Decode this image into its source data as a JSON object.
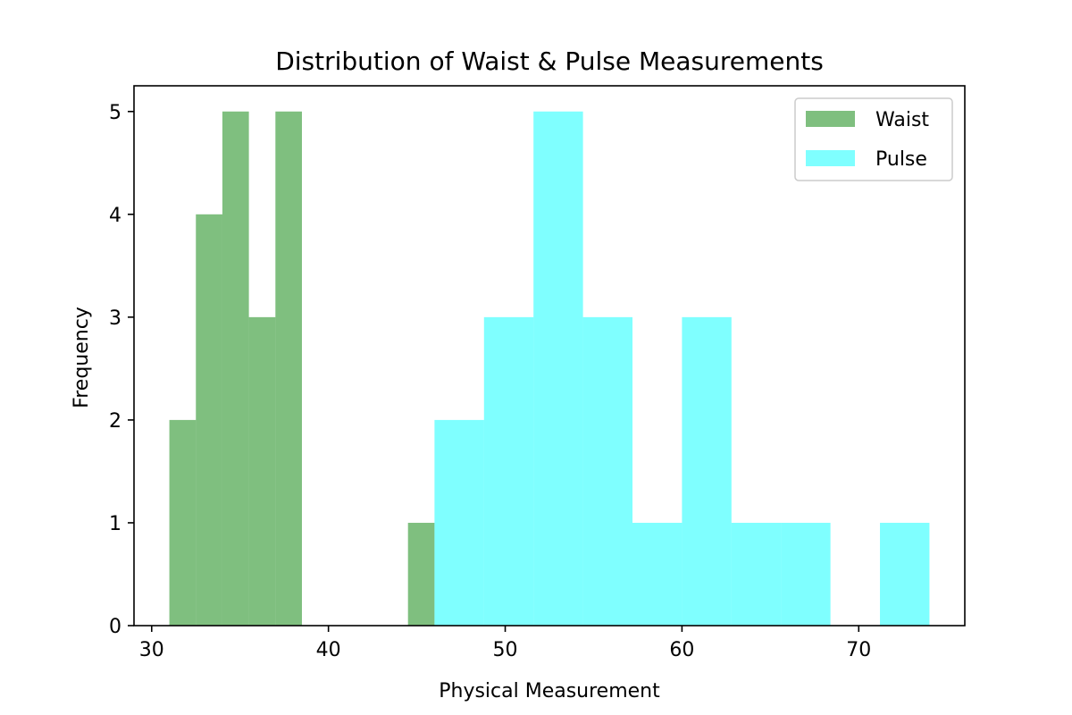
{
  "chart_data": {
    "type": "bar",
    "title": "Distribution of Waist & Pulse Measurements",
    "xlabel": "Physical Measurement",
    "ylabel": "Frequency",
    "xlim": [
      29,
      76
    ],
    "ylim": [
      0,
      5.25
    ],
    "xticks": [
      30,
      40,
      50,
      60,
      70
    ],
    "yticks": [
      0,
      1,
      2,
      3,
      4,
      5
    ],
    "grid": false,
    "legend_position": "top-right",
    "series": [
      {
        "name": "Waist",
        "color": "#008000",
        "opacity": 0.5,
        "bins": [
          {
            "x0": 31.0,
            "x1": 32.5,
            "count": 2
          },
          {
            "x0": 32.5,
            "x1": 34.0,
            "count": 4
          },
          {
            "x0": 34.0,
            "x1": 35.5,
            "count": 5
          },
          {
            "x0": 35.5,
            "x1": 37.0,
            "count": 3
          },
          {
            "x0": 37.0,
            "x1": 38.5,
            "count": 5
          },
          {
            "x0": 38.5,
            "x1": 40.0,
            "count": 0
          },
          {
            "x0": 40.0,
            "x1": 41.5,
            "count": 0
          },
          {
            "x0": 41.5,
            "x1": 43.0,
            "count": 0
          },
          {
            "x0": 43.0,
            "x1": 44.5,
            "count": 0
          },
          {
            "x0": 44.5,
            "x1": 46.0,
            "count": 1
          }
        ]
      },
      {
        "name": "Pulse",
        "color": "#00ffff",
        "opacity": 0.5,
        "bins": [
          {
            "x0": 46.0,
            "x1": 48.8,
            "count": 2
          },
          {
            "x0": 48.8,
            "x1": 51.6,
            "count": 3
          },
          {
            "x0": 51.6,
            "x1": 54.4,
            "count": 5
          },
          {
            "x0": 54.4,
            "x1": 57.2,
            "count": 3
          },
          {
            "x0": 57.2,
            "x1": 60.0,
            "count": 1
          },
          {
            "x0": 60.0,
            "x1": 62.8,
            "count": 3
          },
          {
            "x0": 62.8,
            "x1": 65.6,
            "count": 1
          },
          {
            "x0": 65.6,
            "x1": 68.4,
            "count": 1
          },
          {
            "x0": 68.4,
            "x1": 71.2,
            "count": 0
          },
          {
            "x0": 71.2,
            "x1": 74.0,
            "count": 1
          }
        ]
      }
    ]
  }
}
